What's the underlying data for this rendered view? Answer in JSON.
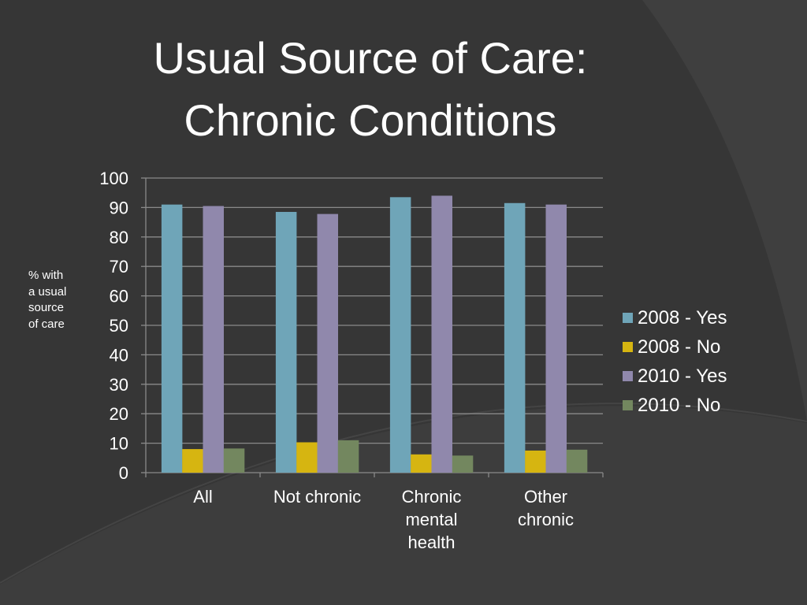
{
  "slide": {
    "title_lines": [
      "Usual Source of Care:",
      "Chronic Conditions"
    ],
    "y_axis_title_lines": [
      "% with",
      "a usual",
      "source",
      "of care"
    ]
  },
  "chart_data": {
    "type": "bar",
    "title": "Usual Source of Care: Chronic Conditions",
    "ylabel": "% with a usual source of care",
    "xlabel": "",
    "ylim": [
      0,
      100
    ],
    "yticks": [
      0,
      10,
      20,
      30,
      40,
      50,
      60,
      70,
      80,
      90,
      100
    ],
    "grid": true,
    "legend_position": "right",
    "categories": [
      [
        "All"
      ],
      [
        "Not chronic"
      ],
      [
        "Chronic",
        "mental",
        "health"
      ],
      [
        "Other",
        "chronic"
      ]
    ],
    "series": [
      {
        "name": "2008 - Yes",
        "color": "#6fa5b8",
        "values": [
          91,
          88.5,
          93.5,
          91.5
        ]
      },
      {
        "name": "2008 - No",
        "color": "#d6b511",
        "values": [
          8,
          10.3,
          6.2,
          7.5
        ]
      },
      {
        "name": "2010 - Yes",
        "color": "#9088ac",
        "values": [
          90.5,
          87.8,
          94,
          91
        ]
      },
      {
        "name": "2010 - No",
        "color": "#73875f",
        "values": [
          8.2,
          11,
          5.8,
          7.8
        ]
      }
    ]
  }
}
